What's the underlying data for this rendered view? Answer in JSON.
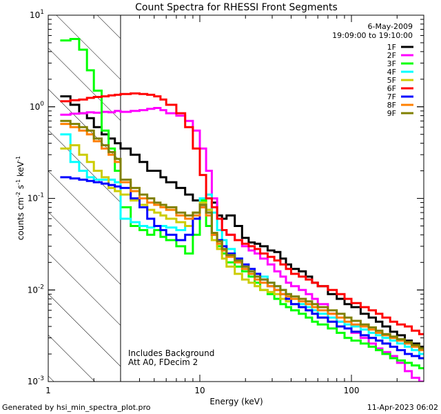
{
  "chart_data": {
    "type": "line",
    "title": "Count Spectra for RHESSI Front Segments",
    "xlabel": "Energy (keV)",
    "ylabel": "counts cm-2 s-1 keV-1",
    "ylabel_parts": {
      "base": "counts cm",
      "exp1": "-2",
      "mid": " s",
      "exp2": "-1",
      "unit": " keV",
      "exp3": "-1"
    },
    "xscale": "log",
    "yscale": "log",
    "xlim": [
      1,
      300
    ],
    "ylim": [
      0.001,
      10
    ],
    "x_ticks": [
      {
        "value": 1,
        "label": "1"
      },
      {
        "value": 10,
        "label": "10"
      },
      {
        "value": 100,
        "label": "100"
      }
    ],
    "y_ticks": [
      {
        "value": 0.001,
        "label": "10",
        "exp": "-3"
      },
      {
        "value": 0.01,
        "label": "10",
        "exp": "-2"
      },
      {
        "value": 0.1,
        "label": "10",
        "exp": "-1"
      },
      {
        "value": 1,
        "label": "10",
        "exp": "0"
      },
      {
        "value": 10,
        "label": "10",
        "exp": "1"
      }
    ],
    "date_text": "6-May-2009",
    "time_text": "19:09:00 to 19:10:00",
    "annotations": [
      "Includes Background",
      "Att A0, FDecim 2"
    ],
    "hatched_region": {
      "x_from": 1,
      "x_to": 3
    },
    "boundary_energy": 3,
    "legend_position": "top-right",
    "energy_edges": [
      1.2,
      1.4,
      1.6,
      1.8,
      2,
      2.25,
      2.5,
      2.75,
      3,
      3.5,
      4,
      4.5,
      5,
      5.5,
      6,
      7,
      8,
      9,
      10,
      11,
      12,
      13,
      14,
      15,
      17,
      19,
      21,
      23,
      25,
      28,
      31,
      34,
      37,
      40,
      45,
      50,
      55,
      60,
      70,
      80,
      90,
      100,
      115,
      130,
      145,
      160,
      180,
      200,
      225,
      250,
      280,
      300
    ],
    "series": [
      {
        "name": "1F",
        "color": "#000000",
        "values": [
          1.3,
          1.05,
          0.85,
          0.75,
          0.6,
          0.5,
          0.45,
          0.4,
          0.35,
          0.3,
          0.25,
          0.2,
          0.2,
          0.17,
          0.15,
          0.13,
          0.11,
          0.095,
          0.08,
          0.075,
          0.09,
          0.065,
          0.06,
          0.065,
          0.05,
          0.037,
          0.033,
          0.032,
          0.03,
          0.027,
          0.026,
          0.022,
          0.019,
          0.017,
          0.016,
          0.014,
          0.012,
          0.011,
          0.009,
          0.008,
          0.007,
          0.0065,
          0.0055,
          0.005,
          0.0045,
          0.004,
          0.0035,
          0.0032,
          0.0028,
          0.0026,
          0.0024
        ]
      },
      {
        "name": "2F",
        "color": "#ff00ff",
        "values": [
          0.82,
          0.84,
          0.85,
          0.87,
          0.86,
          0.88,
          0.87,
          0.9,
          0.88,
          0.9,
          0.92,
          0.95,
          0.97,
          0.92,
          0.85,
          0.8,
          0.7,
          0.55,
          0.35,
          0.2,
          0.1,
          0.06,
          0.045,
          0.04,
          0.035,
          0.03,
          0.027,
          0.025,
          0.022,
          0.019,
          0.016,
          0.014,
          0.012,
          0.011,
          0.01,
          0.009,
          0.008,
          0.007,
          0.0055,
          0.0045,
          0.0038,
          0.0034,
          0.003,
          0.0026,
          0.0023,
          0.0021,
          0.0019,
          0.0016,
          0.0013,
          0.0011,
          0.001
        ]
      },
      {
        "name": "3F",
        "color": "#00ff00",
        "values": [
          5.3,
          5.5,
          4.2,
          2.5,
          1.5,
          0.55,
          0.35,
          0.2,
          0.08,
          0.05,
          0.045,
          0.04,
          0.045,
          0.038,
          0.035,
          0.03,
          0.025,
          0.04,
          0.095,
          0.05,
          0.035,
          0.03,
          0.025,
          0.02,
          0.018,
          0.016,
          0.014,
          0.012,
          0.01,
          0.009,
          0.008,
          0.007,
          0.0065,
          0.006,
          0.0055,
          0.005,
          0.0045,
          0.0042,
          0.0038,
          0.0034,
          0.003,
          0.0028,
          0.0026,
          0.0024,
          0.0022,
          0.002,
          0.0018,
          0.0017,
          0.0016,
          0.0015,
          0.0014
        ]
      },
      {
        "name": "4F",
        "color": "#00ffff",
        "values": [
          0.5,
          0.25,
          0.2,
          0.17,
          0.16,
          0.16,
          0.16,
          0.15,
          0.06,
          0.055,
          0.05,
          0.048,
          0.05,
          0.05,
          0.048,
          0.045,
          0.05,
          0.065,
          0.1,
          0.11,
          0.07,
          0.045,
          0.035,
          0.028,
          0.022,
          0.018,
          0.016,
          0.015,
          0.014,
          0.012,
          0.011,
          0.01,
          0.009,
          0.008,
          0.007,
          0.0065,
          0.006,
          0.0055,
          0.005,
          0.0045,
          0.0042,
          0.004,
          0.0037,
          0.0034,
          0.0032,
          0.003,
          0.0028,
          0.0026,
          0.0024,
          0.0022,
          0.002
        ]
      },
      {
        "name": "5F",
        "color": "#cccc00",
        "values": [
          0.35,
          0.38,
          0.3,
          0.25,
          0.2,
          0.17,
          0.13,
          0.12,
          0.11,
          0.095,
          0.085,
          0.075,
          0.07,
          0.065,
          0.06,
          0.055,
          0.05,
          0.07,
          0.09,
          0.075,
          0.035,
          0.028,
          0.022,
          0.018,
          0.015,
          0.013,
          0.012,
          0.011,
          0.01,
          0.0095,
          0.009,
          0.008,
          0.0075,
          0.007,
          0.0065,
          0.006,
          0.0055,
          0.005,
          0.0045,
          0.004,
          0.0038,
          0.0035,
          0.0032,
          0.003,
          0.0028,
          0.0026,
          0.0024,
          0.0022,
          0.002,
          0.0019,
          0.0018
        ]
      },
      {
        "name": "6F",
        "color": "#ff0000",
        "values": [
          1.15,
          1.18,
          1.2,
          1.25,
          1.28,
          1.3,
          1.33,
          1.35,
          1.38,
          1.4,
          1.38,
          1.35,
          1.3,
          1.2,
          1.05,
          0.85,
          0.6,
          0.35,
          0.18,
          0.1,
          0.08,
          0.06,
          0.045,
          0.04,
          0.035,
          0.032,
          0.03,
          0.028,
          0.025,
          0.023,
          0.021,
          0.019,
          0.017,
          0.015,
          0.014,
          0.013,
          0.012,
          0.011,
          0.01,
          0.009,
          0.008,
          0.0072,
          0.0065,
          0.006,
          0.0055,
          0.005,
          0.0045,
          0.0042,
          0.004,
          0.0036,
          0.0033
        ]
      },
      {
        "name": "7F",
        "color": "#0000ff",
        "values": [
          0.17,
          0.165,
          0.16,
          0.155,
          0.15,
          0.145,
          0.14,
          0.135,
          0.13,
          0.1,
          0.08,
          0.06,
          0.05,
          0.045,
          0.04,
          0.035,
          0.04,
          0.06,
          0.085,
          0.07,
          0.04,
          0.035,
          0.03,
          0.025,
          0.022,
          0.019,
          0.017,
          0.015,
          0.013,
          0.011,
          0.01,
          0.009,
          0.008,
          0.007,
          0.0065,
          0.006,
          0.0055,
          0.005,
          0.0045,
          0.004,
          0.0038,
          0.0035,
          0.0032,
          0.003,
          0.0028,
          0.0026,
          0.0024,
          0.0022,
          0.002,
          0.0019,
          0.0018
        ]
      },
      {
        "name": "8F",
        "color": "#ff8000",
        "values": [
          0.65,
          0.6,
          0.55,
          0.5,
          0.42,
          0.35,
          0.3,
          0.25,
          0.15,
          0.12,
          0.1,
          0.09,
          0.085,
          0.08,
          0.075,
          0.065,
          0.06,
          0.065,
          0.08,
          0.065,
          0.04,
          0.032,
          0.027,
          0.023,
          0.02,
          0.017,
          0.015,
          0.013,
          0.012,
          0.011,
          0.01,
          0.009,
          0.0085,
          0.008,
          0.0075,
          0.007,
          0.0065,
          0.006,
          0.0055,
          0.005,
          0.0045,
          0.0042,
          0.004,
          0.0037,
          0.0034,
          0.0032,
          0.003,
          0.0028,
          0.0026,
          0.0024,
          0.0022
        ]
      },
      {
        "name": "9F",
        "color": "#808000",
        "values": [
          0.7,
          0.65,
          0.6,
          0.55,
          0.45,
          0.38,
          0.32,
          0.27,
          0.16,
          0.13,
          0.11,
          0.1,
          0.09,
          0.085,
          0.08,
          0.07,
          0.065,
          0.07,
          0.085,
          0.07,
          0.042,
          0.034,
          0.028,
          0.024,
          0.021,
          0.018,
          0.016,
          0.014,
          0.013,
          0.012,
          0.011,
          0.01,
          0.009,
          0.0085,
          0.008,
          0.0075,
          0.007,
          0.0065,
          0.006,
          0.0055,
          0.005,
          0.0046,
          0.0042,
          0.0039,
          0.0036,
          0.0033,
          0.0031,
          0.0029,
          0.0027,
          0.0025,
          0.0023
        ]
      }
    ]
  },
  "footer": {
    "generated_by": "Generated by hsi_min_spectra_plot.pro",
    "timestamp": "11-Apr-2023 06:02"
  }
}
